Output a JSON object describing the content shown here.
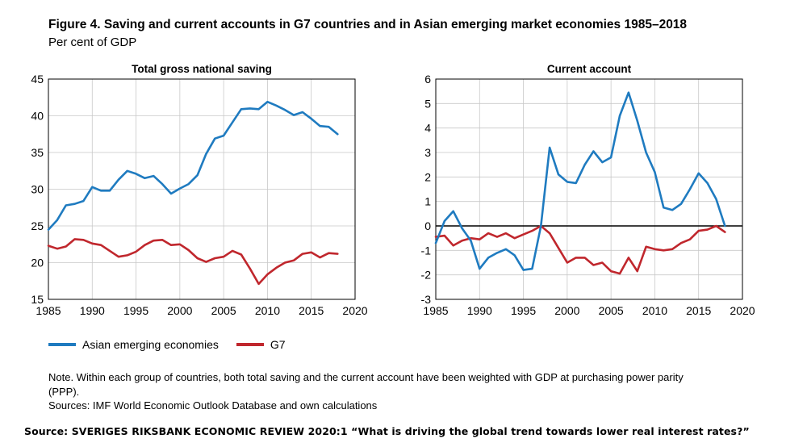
{
  "figure": {
    "title": "Figure 4. Saving and current accounts in G7 countries and in Asian emerging market economies 1985–2018",
    "subtitle": "Per cent of GDP"
  },
  "legend": [
    {
      "name": "Asian emerging economies",
      "color": "#1f7bc0"
    },
    {
      "name": "G7",
      "color": "#c0272d"
    }
  ],
  "note": "Note. Within each group of countries, both total saving and the current account have been weighted with GDP at purchasing power parity (PPP).",
  "sources": "Sources: IMF World Economic Outlook Database and own calculations",
  "source_line": "Source: SVERIGES RIKSBANK ECONOMIC REVIEW 2020:1   “What is driving the global trend towards lower real interest rates?”",
  "chart_data": [
    {
      "type": "line",
      "title": "Total gross national saving",
      "xlim": [
        1985,
        2020
      ],
      "ylim": [
        15,
        45
      ],
      "xticks": [
        1985,
        1990,
        1995,
        2000,
        2005,
        2010,
        2015,
        2020
      ],
      "yticks": [
        15,
        20,
        25,
        30,
        35,
        40,
        45
      ],
      "grid": true,
      "x": [
        1985,
        1986,
        1987,
        1988,
        1989,
        1990,
        1991,
        1992,
        1993,
        1994,
        1995,
        1996,
        1997,
        1998,
        1999,
        2000,
        2001,
        2002,
        2003,
        2004,
        2005,
        2006,
        2007,
        2008,
        2009,
        2010,
        2011,
        2012,
        2013,
        2014,
        2015,
        2016,
        2017,
        2018
      ],
      "series": [
        {
          "name": "Asian emerging economies",
          "color": "#1f7bc0",
          "values": [
            24.5,
            25.8,
            27.8,
            28.0,
            28.4,
            30.3,
            29.8,
            29.8,
            31.3,
            32.5,
            32.1,
            31.5,
            31.8,
            30.7,
            29.4,
            30.1,
            30.7,
            31.9,
            34.8,
            36.9,
            37.3,
            39.1,
            40.9,
            41.0,
            40.9,
            41.9,
            41.4,
            40.8,
            40.1,
            40.5,
            39.6,
            38.6,
            38.5,
            37.5
          ]
        },
        {
          "name": "G7",
          "color": "#c0272d",
          "values": [
            22.3,
            21.9,
            22.2,
            23.2,
            23.1,
            22.6,
            22.4,
            21.6,
            20.8,
            21.0,
            21.5,
            22.4,
            23.0,
            23.1,
            22.4,
            22.5,
            21.7,
            20.6,
            20.1,
            20.6,
            20.8,
            21.6,
            21.1,
            19.2,
            17.1,
            18.4,
            19.3,
            20.0,
            20.3,
            21.2,
            21.4,
            20.7,
            21.3,
            21.2
          ]
        }
      ]
    },
    {
      "type": "line",
      "title": "Current account",
      "xlim": [
        1985,
        2020
      ],
      "ylim": [
        -3,
        6
      ],
      "xticks": [
        1985,
        1990,
        1995,
        2000,
        2005,
        2010,
        2015,
        2020
      ],
      "yticks": [
        -3,
        -2,
        -1,
        0,
        1,
        2,
        3,
        4,
        5,
        6
      ],
      "grid": true,
      "zero_line": true,
      "x": [
        1985,
        1986,
        1987,
        1988,
        1989,
        1990,
        1991,
        1992,
        1993,
        1994,
        1995,
        1996,
        1997,
        1998,
        1999,
        2000,
        2001,
        2002,
        2003,
        2004,
        2005,
        2006,
        2007,
        2008,
        2009,
        2010,
        2011,
        2012,
        2013,
        2014,
        2015,
        2016,
        2017,
        2018
      ],
      "series": [
        {
          "name": "Asian emerging economies",
          "color": "#1f7bc0",
          "values": [
            -0.7,
            0.2,
            0.6,
            -0.1,
            -0.6,
            -1.75,
            -1.3,
            -1.1,
            -0.95,
            -1.2,
            -1.8,
            -1.75,
            0.0,
            3.2,
            2.1,
            1.8,
            1.75,
            2.5,
            3.05,
            2.6,
            2.8,
            4.5,
            5.45,
            4.3,
            3.0,
            2.2,
            0.75,
            0.65,
            0.9,
            1.5,
            2.15,
            1.75,
            1.1,
            0.0
          ]
        },
        {
          "name": "G7",
          "color": "#c0272d",
          "values": [
            -0.45,
            -0.4,
            -0.8,
            -0.6,
            -0.5,
            -0.55,
            -0.3,
            -0.45,
            -0.3,
            -0.5,
            -0.35,
            -0.2,
            0.0,
            -0.3,
            -0.9,
            -1.5,
            -1.3,
            -1.3,
            -1.6,
            -1.5,
            -1.85,
            -1.95,
            -1.3,
            -1.85,
            -0.85,
            -0.95,
            -1.0,
            -0.95,
            -0.7,
            -0.55,
            -0.2,
            -0.15,
            0.0,
            -0.25
          ]
        }
      ]
    }
  ]
}
